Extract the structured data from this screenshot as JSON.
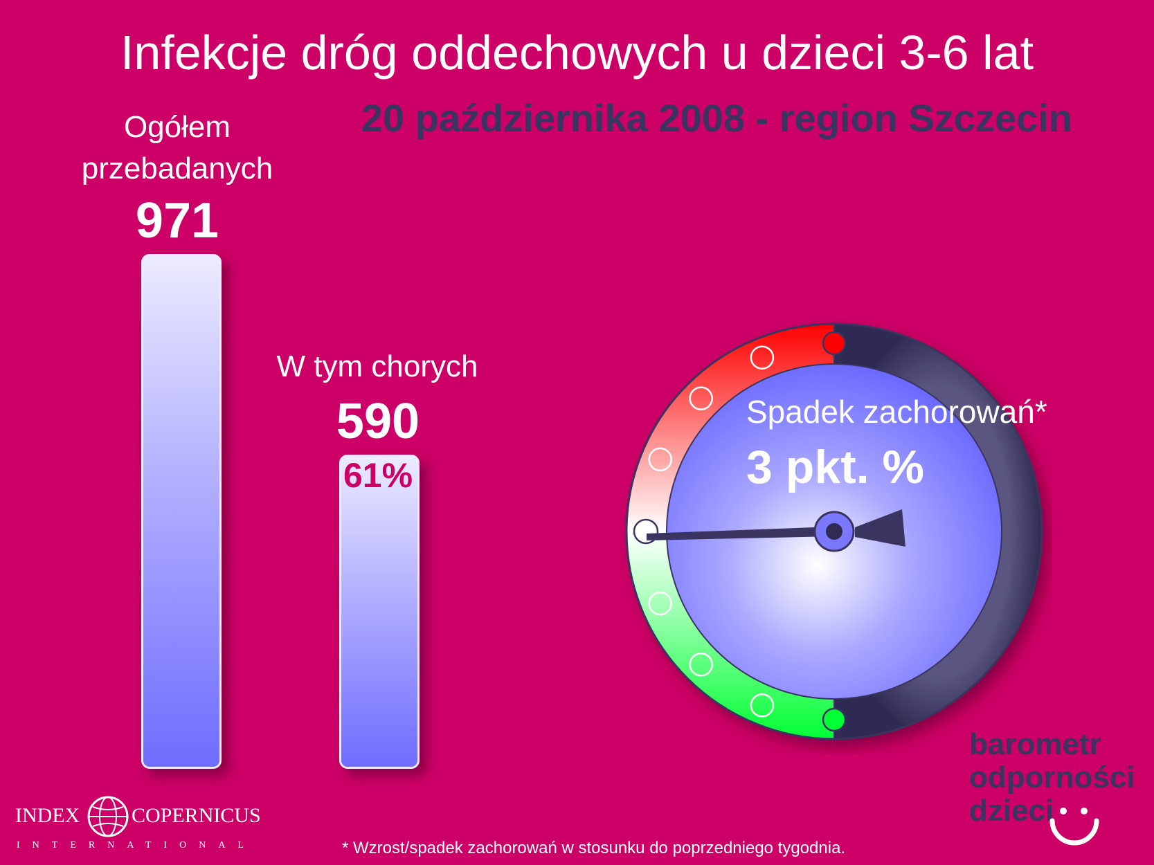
{
  "title": "Infekcje dróg oddechowych u dzieci 3-6 lat",
  "subtitle": "20 października 2008 - region Szczecin",
  "chart_data": {
    "type": "bar",
    "categories": [
      "Ogółem przebadanych",
      "W tym chorych"
    ],
    "values": [
      971,
      590
    ],
    "value_labels": [
      "971",
      "590"
    ],
    "percent_label": "61%",
    "ylim": [
      0,
      971
    ]
  },
  "gauge": {
    "label": "Spadek zachorowań*",
    "value_text": "3 pkt. %",
    "value": -3,
    "colors": {
      "increase": "#ff0000",
      "decrease": "#00ff33",
      "dial": "#6d6bff",
      "dark": "#3a3560"
    }
  },
  "footnote": "* Wzrost/spadek zachorowań w stosunku do poprzedniego tygodnia.",
  "logo": {
    "brand_lines": [
      "barometr",
      "odporności",
      "dzieci"
    ],
    "publisher_left": "INDEX",
    "publisher_right": "COPERNICUS",
    "publisher_sub": "INTERNATIONAL"
  }
}
